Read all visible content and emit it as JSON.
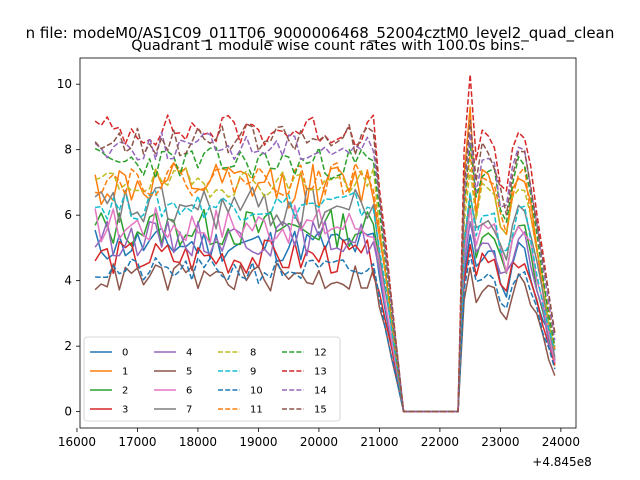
{
  "figure": {
    "suptitle": "n file: modeM0/AS1C09_011T06_9000006468_52004cztM0_level2_quad_clean"
  },
  "chart_data": {
    "type": "line",
    "title": "Quadrant 1 module wise count rates with 100.0s bins.",
    "xlabel": "",
    "ylabel": "",
    "x_offset_label": "+4.845e8",
    "xlim": [
      16050,
      24250
    ],
    "ylim": [
      -0.5,
      10.8
    ],
    "x_ticks": [
      16000,
      17000,
      18000,
      19000,
      20000,
      21000,
      22000,
      23000,
      24000
    ],
    "y_ticks": [
      0,
      2,
      4,
      6,
      8,
      10
    ],
    "x_tick_labels": [
      "16000",
      "17000",
      "18000",
      "19000",
      "20000",
      "21000",
      "22000",
      "23000",
      "24000"
    ],
    "y_tick_labels": [
      "0",
      "2",
      "4",
      "6",
      "8",
      "10"
    ],
    "grid": false,
    "legend_position": "lower-left",
    "legend_columns": 4,
    "x": {
      "start": 16300,
      "step": 100,
      "count": 77
    },
    "gap": {
      "start": 21400,
      "end": 22300
    },
    "profile": {
      "pre_end": 20900,
      "fall_end": 21400,
      "post_start": 22300,
      "post_peak": 22500,
      "second_peak": 23400,
      "end": 23900
    },
    "series": [
      {
        "name": "0",
        "color": "#1f77b4",
        "dash": "solid",
        "base": 5.1,
        "peak": 5.4,
        "peak2": 5.0,
        "end_val": 1.5,
        "noise": 0.55,
        "seed": 11
      },
      {
        "name": "1",
        "color": "#ff7f0e",
        "dash": "solid",
        "base": 6.9,
        "peak": 9.3,
        "peak2": 7.4,
        "end_val": 1.3,
        "noise": 0.7,
        "seed": 12
      },
      {
        "name": "2",
        "color": "#2ca02c",
        "dash": "solid",
        "base": 5.6,
        "peak": 6.3,
        "peak2": 5.6,
        "end_val": 1.4,
        "noise": 0.6,
        "seed": 13
      },
      {
        "name": "3",
        "color": "#d62728",
        "dash": "solid",
        "base": 4.7,
        "peak": 5.1,
        "peak2": 4.7,
        "end_val": 1.2,
        "noise": 0.55,
        "seed": 14
      },
      {
        "name": "4",
        "color": "#9467bd",
        "dash": "solid",
        "base": 5.3,
        "peak": 5.8,
        "peak2": 5.3,
        "end_val": 1.6,
        "noise": 0.55,
        "seed": 15
      },
      {
        "name": "5",
        "color": "#8c564b",
        "dash": "solid",
        "base": 4.1,
        "peak": 4.4,
        "peak2": 4.0,
        "end_val": 1.1,
        "noise": 0.45,
        "seed": 16
      },
      {
        "name": "6",
        "color": "#e377c2",
        "dash": "solid",
        "base": 5.7,
        "peak": 6.2,
        "peak2": 5.8,
        "end_val": 1.5,
        "noise": 0.6,
        "seed": 17
      },
      {
        "name": "7",
        "color": "#7f7f7f",
        "dash": "solid",
        "base": 6.2,
        "peak": 6.6,
        "peak2": 6.1,
        "end_val": 1.6,
        "noise": 0.7,
        "seed": 18
      },
      {
        "name": "8",
        "color": "#bcbd22",
        "dash": "dashed",
        "base": 7.0,
        "peak": 7.4,
        "peak2": 7.0,
        "end_val": 1.8,
        "noise": 0.45,
        "seed": 19
      },
      {
        "name": "9",
        "color": "#17becf",
        "dash": "dashed",
        "base": 6.3,
        "peak": 6.7,
        "peak2": 6.2,
        "end_val": 1.7,
        "noise": 0.45,
        "seed": 20
      },
      {
        "name": "10",
        "color": "#1f77b4",
        "dash": "dashed",
        "base": 4.3,
        "peak": 4.8,
        "peak2": 4.4,
        "end_val": 1.3,
        "noise": 0.4,
        "seed": 21
      },
      {
        "name": "11",
        "color": "#ff7f0e",
        "dash": "dashed",
        "base": 7.1,
        "peak": 7.9,
        "peak2": 7.3,
        "end_val": 1.9,
        "noise": 0.5,
        "seed": 22
      },
      {
        "name": "12",
        "color": "#2ca02c",
        "dash": "dashed",
        "base": 7.6,
        "peak": 8.2,
        "peak2": 7.6,
        "end_val": 2.0,
        "noise": 0.5,
        "seed": 23
      },
      {
        "name": "13",
        "color": "#d62728",
        "dash": "dashed",
        "base": 8.6,
        "peak": 10.3,
        "peak2": 8.7,
        "end_val": 2.4,
        "noise": 0.5,
        "seed": 24
      },
      {
        "name": "14",
        "color": "#9467bd",
        "dash": "dashed",
        "base": 8.1,
        "peak": 8.5,
        "peak2": 8.0,
        "end_val": 2.1,
        "noise": 0.45,
        "seed": 25
      },
      {
        "name": "15",
        "color": "#8c564b",
        "dash": "dashed",
        "base": 8.3,
        "peak": 8.9,
        "peak2": 8.2,
        "end_val": 2.2,
        "noise": 0.5,
        "seed": 26
      }
    ]
  }
}
